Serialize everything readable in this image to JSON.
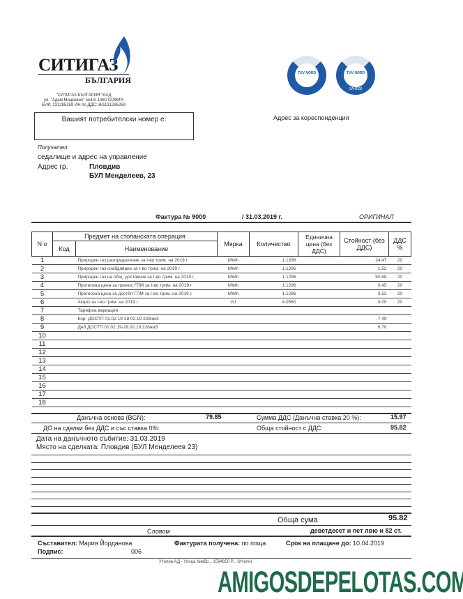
{
  "company": {
    "logo_name": "СИТИГАЗ",
    "logo_sub": "БЪЛГАРИЯ",
    "name": "\"СИТИГАЗ БЪЛГАРИЯ\" ЕАД",
    "address": "ул. \"Адам Мицкевич\" №4/А 1360 СОФИЯ",
    "ids": "ЕИК: 131285259 ИН по ДДС: BG131285259",
    "cert1": "TÜV NORD",
    "cert2": "TÜV NORD",
    "cert2_code": "SA 8000",
    "brand_color": "#1f5aa6"
  },
  "customer_box_label": "Вашият потребителски номер е:",
  "correspondence_label": "Адрес за кореспонденция",
  "recipient": {
    "label": "Получател:",
    "line": "седалище и адрес на управление",
    "addr_label": "Адрес гр.",
    "city": "Пловдив",
    "street": "БУЛ Менделеев, 23"
  },
  "invoice": {
    "title": "Фактура № 9000",
    "date": "/  31.03.2019 г.",
    "copy": "ОРИГИНАЛ"
  },
  "table": {
    "headers": {
      "no": "N o",
      "subject": "Предмет на стопанската операция",
      "code": "Код",
      "name": "Наименование",
      "unit": "Мярка",
      "qty": "Количество",
      "price": "Единична цена (без ДДС)",
      "value": "Стойност (без ДДС)",
      "vat": "ДДС %"
    },
    "rows": [
      {
        "n": "1",
        "name": "Природен газ разпределение за I-во трим. на 2019 г.",
        "unit": "MWh",
        "qty": "1.1296",
        "value": "24.47",
        "vat": "20"
      },
      {
        "n": "2",
        "name": "Природен газ снабдяване за I-во трим. на 2019 г.",
        "unit": "MWh",
        "qty": "1.1296",
        "value": "1.52",
        "vat": "20"
      },
      {
        "n": "3",
        "name": "Природен газ на общ. доставчик за I-во трим. на 2019 г.",
        "unit": "MWh",
        "qty": "1.1296",
        "value": "50.68",
        "vat": "20"
      },
      {
        "n": "4",
        "name": "Прогнозна цена за пренос ГПМ за I-во трим. на 2019 г.",
        "unit": "MWh",
        "qty": "1.1296",
        "value": "0.45",
        "vat": "20"
      },
      {
        "n": "5",
        "name": "Прогнозна цена за достбл ГПМ за I-во трим. на 2019 г.",
        "unit": "MWh",
        "qty": "1.1296",
        "value": "3.52",
        "vat": "20"
      },
      {
        "n": "6",
        "name": "Акциз за I-во трим. на 2019 г.",
        "unit": "GJ",
        "qty": "4.0560",
        "value": "0.00",
        "vat": "20"
      },
      {
        "n": "7",
        "name": "Тарифна вариация"
      },
      {
        "n": "8",
        "name": "Кор. ДОСТП 01.02.19-28.02.19 228нм3",
        "value": "-7.49"
      },
      {
        "n": "9",
        "name": "Деб  ДОСТП 01.02.19-28.02.19 228нм3",
        "value": "6.70"
      },
      {
        "n": "10"
      },
      {
        "n": "11"
      },
      {
        "n": "12"
      },
      {
        "n": "13"
      },
      {
        "n": "14"
      },
      {
        "n": "15"
      },
      {
        "n": "16"
      },
      {
        "n": "17"
      },
      {
        "n": "18"
      }
    ]
  },
  "summary": {
    "tax_base_label": "Данъчна основа (BGN):",
    "tax_base": "79.85",
    "vat_label": "Сумма ДДС (Данъчна ставка 20 %):",
    "vat": "15.97",
    "zero_label": "ДО на сделки без ДДС и със ставка 0%:",
    "total_label": "Обща стойност с ДДС:",
    "total": "95.82",
    "event_date": "Дата на данъчното събитие: 31.03.2019",
    "place": "Място на сделката: Пловдив (БУЛ Менделеев 23)"
  },
  "grand": {
    "label": "Обща сума",
    "value": "95.82",
    "words_label": "Словом",
    "words": "деветдесет и пет лвю и 82 ст."
  },
  "footer": {
    "author_label": "Съставител:",
    "author": "Мария Йорданова",
    "sign_label": "Подпис:",
    "sign": "006",
    "received_label": "Фактурата получена:",
    "received": "по поща",
    "due_label": "Срок на плащане до:",
    "due": "10.04.2019",
    "bottom": "Утилиа АД - Улица Киабр... 1594850 Р... (Итали)"
  },
  "watermark": "AMIGOSDEPELOTAS.COM"
}
